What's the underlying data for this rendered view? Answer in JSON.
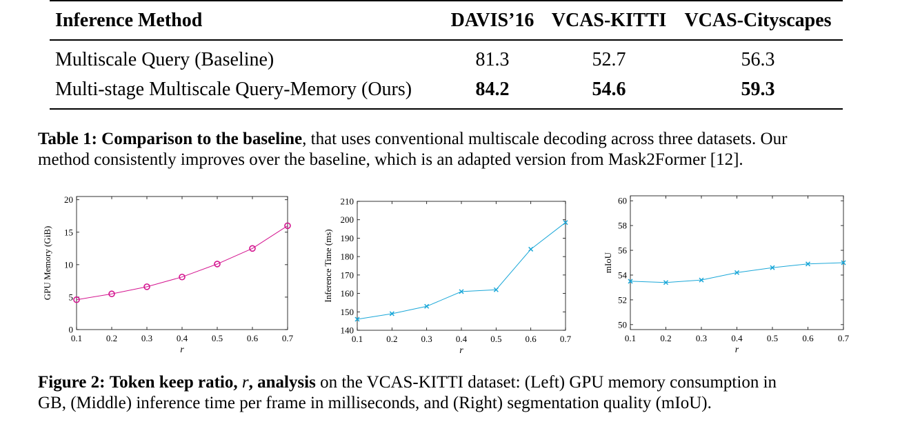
{
  "table": {
    "columns": [
      "Inference Method",
      "DAVIS’16",
      "VCAS-KITTI",
      "VCAS-Cityscapes"
    ],
    "rows": [
      {
        "method": "Multiscale Query (Baseline)",
        "values": [
          "81.3",
          "52.7",
          "56.3"
        ],
        "bold": false
      },
      {
        "method": "Multi-stage Multiscale Query-Memory (Ours)",
        "values": [
          "84.2",
          "54.6",
          "59.3"
        ],
        "bold": true
      }
    ]
  },
  "table_caption": {
    "label": "Table 1:",
    "lead": "Comparison to the baseline",
    "line1": ", that uses conventional multiscale decoding across three datasets. Our",
    "line2": "method consistently improves over the baseline, which is an adapted version from Mask2Former [12]."
  },
  "figure_caption": {
    "label": "Figure 2:",
    "lead_a": "Token keep ratio,",
    "lead_var": "r",
    "lead_b": ", analysis",
    "line1": " on the VCAS-KITTI dataset:  (Left) GPU memory consumption in",
    "line2": "GB, (Middle) inference time per frame in milliseconds, and (Right) segmentation quality (mIoU)."
  },
  "chart_data": [
    {
      "type": "line",
      "xlabel": "r",
      "ylabel": "GPU Memory (GiB)",
      "x": [
        0.1,
        0.2,
        0.3,
        0.4,
        0.5,
        0.6,
        0.7
      ],
      "series": [
        {
          "values": [
            4.6,
            5.5,
            6.6,
            8.1,
            10.1,
            12.5,
            16.0
          ],
          "marker": "circle",
          "color": "#d4148f"
        }
      ],
      "xlim": [
        0.1,
        0.7
      ],
      "ylim": [
        0,
        20.5
      ],
      "xticks": [
        "0.1",
        "0.2",
        "0.3",
        "0.4",
        "0.5",
        "0.6",
        "0.7"
      ],
      "yticks": [
        "0",
        "5",
        "10",
        "15",
        "20"
      ],
      "grid": false
    },
    {
      "type": "line",
      "xlabel": "r",
      "ylabel": "Inference Time (ms)",
      "x": [
        0.1,
        0.2,
        0.3,
        0.4,
        0.5,
        0.6,
        0.7
      ],
      "series": [
        {
          "values": [
            146,
            149,
            153,
            161,
            162,
            184,
            198.5
          ],
          "marker": "x",
          "color": "#1aa7d8"
        }
      ],
      "xlim": [
        0.1,
        0.7
      ],
      "ylim": [
        140,
        210
      ],
      "xticks": [
        "0.1",
        "0.2",
        "0.3",
        "0.4",
        "0.5",
        "0.6",
        "0.7"
      ],
      "yticks": [
        "140",
        "150",
        "160",
        "170",
        "180",
        "190",
        "200",
        "210"
      ],
      "grid": false
    },
    {
      "type": "line",
      "xlabel": "r",
      "ylabel": "mIoU",
      "x": [
        0.1,
        0.2,
        0.3,
        0.4,
        0.5,
        0.6,
        0.7
      ],
      "series": [
        {
          "values": [
            53.5,
            53.4,
            53.6,
            54.2,
            54.6,
            54.9,
            55.0
          ],
          "marker": "x",
          "color": "#1aa7d8"
        }
      ],
      "xlim": [
        0.1,
        0.7
      ],
      "ylim": [
        49.6,
        60.4
      ],
      "xticks": [
        "0.1",
        "0.2",
        "0.3",
        "0.4",
        "0.5",
        "0.6",
        "0.7"
      ],
      "yticks": [
        "50",
        "52",
        "54",
        "56",
        "58",
        "60"
      ],
      "grid": false
    }
  ]
}
